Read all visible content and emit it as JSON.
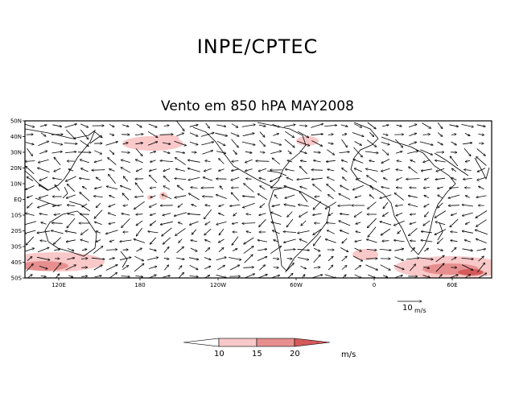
{
  "header": {
    "title": "INPE/CPTEC"
  },
  "map": {
    "title": "Vento em 850 hPA MAY2008",
    "lat_labels": [
      "50N",
      "40N",
      "30N",
      "20N",
      "10N",
      "EQ",
      "10S",
      "20S",
      "30S",
      "40S",
      "50S"
    ],
    "lon_labels": [
      "120E",
      "180",
      "120W",
      "60W",
      "0",
      "60E"
    ],
    "reference_vector": {
      "value": "10",
      "unit": "m/s"
    }
  },
  "colorbar": {
    "levels": [
      "10",
      "15",
      "20"
    ],
    "unit": "m/s",
    "colors": [
      "#ffffff",
      "#f9c8c8",
      "#e78f8f",
      "#d45a5a"
    ]
  }
}
